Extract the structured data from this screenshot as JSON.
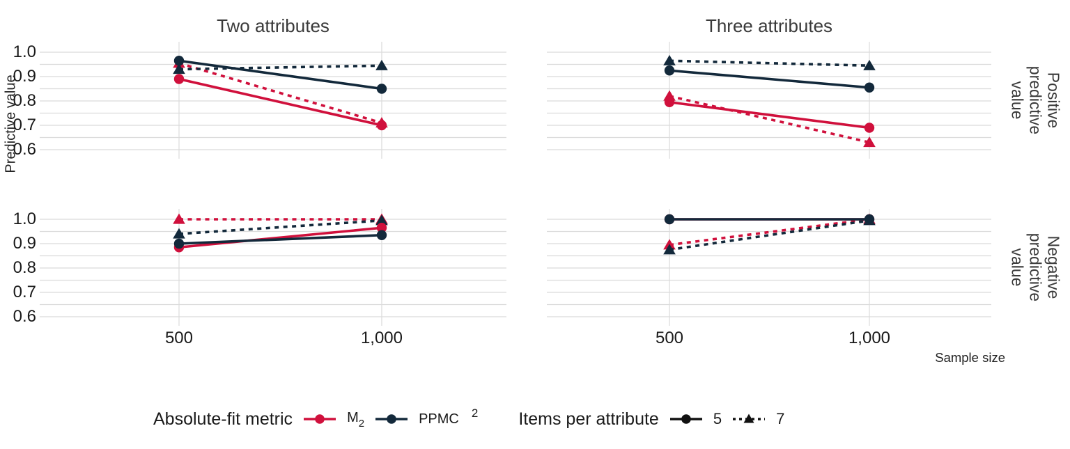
{
  "figure": {
    "col_facets": [
      "Two attributes",
      "Three attributes"
    ],
    "row_facets": [
      {
        "name": "Positive predictive value",
        "lines": "Positive\npredictive\nvalue"
      },
      {
        "name": "Negative predictive value",
        "lines": "Negative\npredictive\nvalue"
      }
    ],
    "y_axis_label": "Predictive value",
    "x_axis_label": "Sample size"
  },
  "chart_data": {
    "type": "line",
    "x": [
      500,
      1000
    ],
    "x_tick_labels": [
      "500",
      "1,000"
    ],
    "y_ticks": [
      1.0,
      0.9,
      0.8,
      0.7,
      0.6
    ],
    "y_tick_labels": [
      "1.0",
      "0.9",
      "0.8",
      "0.7",
      "0.6"
    ],
    "ylim": [
      0.6,
      1.0
    ],
    "grid": "horizontal gridlines every 0.05; vertical gridlines at x ticks",
    "legend_position": "bottom",
    "panels": [
      {
        "column": "Two attributes",
        "prow": "Positive predictive value",
        "series": [
          {
            "metric": "M2",
            "items": "7",
            "values": [
              0.955,
              0.71
            ]
          },
          {
            "metric": "PPMC",
            "items": "7",
            "values": [
              0.93,
              0.945
            ]
          },
          {
            "metric": "M2",
            "items": "5",
            "values": [
              0.89,
              0.7
            ]
          },
          {
            "metric": "PPMC",
            "items": "5",
            "values": [
              0.965,
              0.85
            ]
          }
        ]
      },
      {
        "column": "Three attributes",
        "prow": "Positive predictive value",
        "series": [
          {
            "metric": "M2",
            "items": "7",
            "values": [
              0.82,
              0.63
            ]
          },
          {
            "metric": "PPMC",
            "items": "7",
            "values": [
              0.965,
              0.945
            ]
          },
          {
            "metric": "M2",
            "items": "5",
            "values": [
              0.795,
              0.69
            ]
          },
          {
            "metric": "PPMC",
            "items": "5",
            "values": [
              0.925,
              0.855
            ]
          }
        ]
      },
      {
        "column": "Two attributes",
        "prow": "Negative predictive value",
        "series": [
          {
            "metric": "M2",
            "items": "7",
            "values": [
              1.0,
              1.0
            ]
          },
          {
            "metric": "PPMC",
            "items": "7",
            "values": [
              0.94,
              0.995
            ]
          },
          {
            "metric": "M2",
            "items": "5",
            "values": [
              0.885,
              0.965
            ]
          },
          {
            "metric": "PPMC",
            "items": "5",
            "values": [
              0.9,
              0.935
            ]
          }
        ]
      },
      {
        "column": "Three attributes",
        "prow": "Negative predictive value",
        "series": [
          {
            "metric": "M2",
            "items": "7",
            "values": [
              0.895,
              1.0
            ]
          },
          {
            "metric": "PPMC",
            "items": "7",
            "values": [
              0.875,
              0.995
            ]
          },
          {
            "metric": "M2",
            "items": "5",
            "values": [
              1.0,
              1.0
            ]
          },
          {
            "metric": "PPMC",
            "items": "5",
            "values": [
              1.0,
              1.0
            ]
          }
        ]
      }
    ]
  },
  "legend": {
    "metric_title": "Absolute-fit metric",
    "m2_base": "M",
    "m2_sub": "2",
    "ppmc_label": "PPMC",
    "footnote_marker": "2",
    "items_title": "Items per attribute",
    "item5_label": "5",
    "item7_label": "7"
  },
  "colors": {
    "m2": "#D0103C",
    "ppmc": "#13293B",
    "items_key": "#111111",
    "grid": "#DBDBDB",
    "text": "#1A1A1A",
    "muted_text": "#3A3A3A"
  }
}
